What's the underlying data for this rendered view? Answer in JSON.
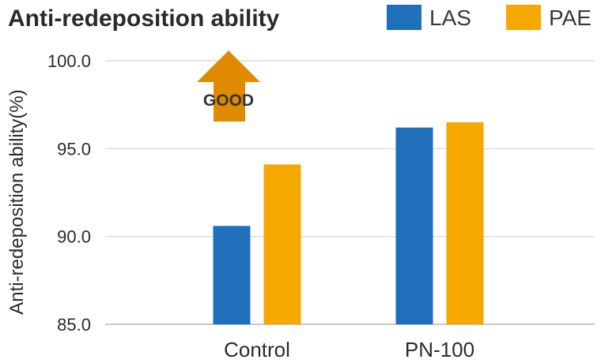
{
  "chart_data": {
    "type": "bar",
    "title": "Anti-redeposition ability",
    "ylabel": "Anti-redeposition ability(%)",
    "xlabel": "",
    "categories": [
      "Control",
      "PN-100"
    ],
    "series": [
      {
        "name": "LAS",
        "color": "#1f6fba",
        "values": [
          90.6,
          96.2
        ]
      },
      {
        "name": "PAE",
        "color": "#f5a800",
        "values": [
          94.1,
          96.5
        ]
      }
    ],
    "ylim": [
      85.0,
      100.0
    ],
    "yticks": [
      "85.0",
      "90.0",
      "95.0",
      "100.0"
    ],
    "grid": "horizontal",
    "legend_position": "top-right",
    "annotation": {
      "text": "GOOD",
      "color": "#e08a00",
      "icon": "up-arrow-icon"
    }
  }
}
